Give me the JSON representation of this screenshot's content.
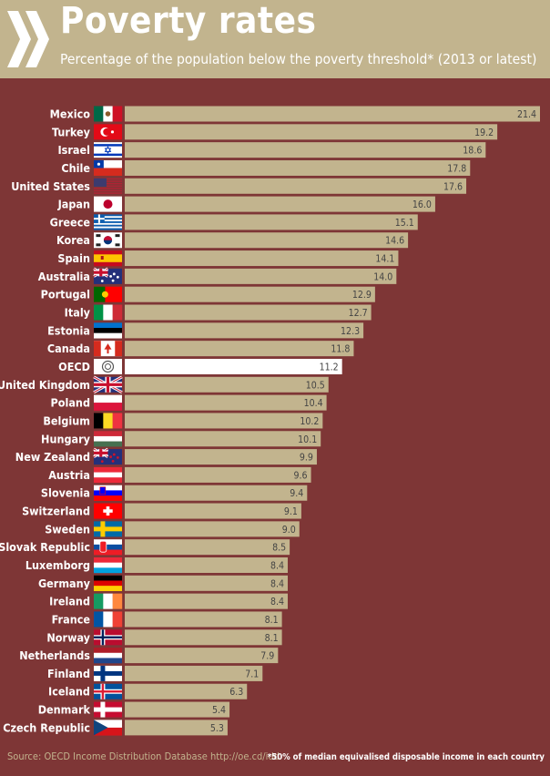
{
  "header": {
    "title": "Poverty rates",
    "subtitle": "Percentage of the population below the poverty threshold* (2013 or latest)"
  },
  "footer": {
    "source": "Source: OECD Income Distribution Database http://oe.cd/idd",
    "footnote": "*50% of median equivalised disposable income in each country"
  },
  "colors": {
    "background": "#7e3636",
    "bar": "#c2b48e",
    "highlight_bar": "#ffffff",
    "header": "#c2b48e"
  },
  "chart_data": {
    "type": "bar",
    "orientation": "horizontal",
    "categories": [
      "Mexico",
      "Turkey",
      "Israel",
      "Chile",
      "United States",
      "Japan",
      "Greece",
      "Korea",
      "Spain",
      "Australia",
      "Portugal",
      "Italy",
      "Estonia",
      "Canada",
      "OECD",
      "United Kingdom",
      "Poland",
      "Belgium",
      "Hungary",
      "New Zealand",
      "Austria",
      "Slovenia",
      "Switzerland",
      "Sweden",
      "Slovak Republic",
      "Luxemborg",
      "Germany",
      "Ireland",
      "France",
      "Norway",
      "Netherlands",
      "Finland",
      "Iceland",
      "Denmark",
      "Czech Republic"
    ],
    "values": [
      21.4,
      19.2,
      18.6,
      17.8,
      17.6,
      16.0,
      15.1,
      14.6,
      14.1,
      14.0,
      12.9,
      12.7,
      12.3,
      11.8,
      11.2,
      10.5,
      10.4,
      10.2,
      10.1,
      9.9,
      9.6,
      9.4,
      9.1,
      9.0,
      8.5,
      8.4,
      8.4,
      8.4,
      8.1,
      8.1,
      7.9,
      7.1,
      6.3,
      5.4,
      5.3
    ],
    "value_labels": [
      "21.4",
      "19.2",
      "18.6",
      "17.8",
      "17.6",
      "16.0",
      "15.1",
      "14.6",
      "14.1",
      "14.0",
      "12.9",
      "12.7",
      "12.3",
      "11.8",
      "11.2",
      "10.5",
      "10.4",
      "10.2",
      "10.1",
      "9.9",
      "9.6",
      "9.4",
      "9.1",
      "9.0",
      "8.5",
      "8.4",
      "8.4",
      "8.4",
      "8.1",
      "8.1",
      "7.9",
      "7.1",
      "6.3",
      "5.4",
      "5.3"
    ],
    "highlight": "OECD",
    "flag_icons": [
      "mexico-flag-icon",
      "turkey-flag-icon",
      "israel-flag-icon",
      "chile-flag-icon",
      "united-states-flag-icon",
      "japan-flag-icon",
      "greece-flag-icon",
      "korea-flag-icon",
      "spain-flag-icon",
      "australia-flag-icon",
      "portugal-flag-icon",
      "italy-flag-icon",
      "estonia-flag-icon",
      "canada-flag-icon",
      "oecd-logo-icon",
      "united-kingdom-flag-icon",
      "poland-flag-icon",
      "belgium-flag-icon",
      "hungary-flag-icon",
      "new-zealand-flag-icon",
      "austria-flag-icon",
      "slovenia-flag-icon",
      "switzerland-flag-icon",
      "sweden-flag-icon",
      "slovak-republic-flag-icon",
      "luxembourg-flag-icon",
      "germany-flag-icon",
      "ireland-flag-icon",
      "france-flag-icon",
      "norway-flag-icon",
      "netherlands-flag-icon",
      "finland-flag-icon",
      "iceland-flag-icon",
      "denmark-flag-icon",
      "czech-republic-flag-icon"
    ],
    "xlim": [
      0,
      21.4
    ],
    "grid": false,
    "legend": "none"
  }
}
